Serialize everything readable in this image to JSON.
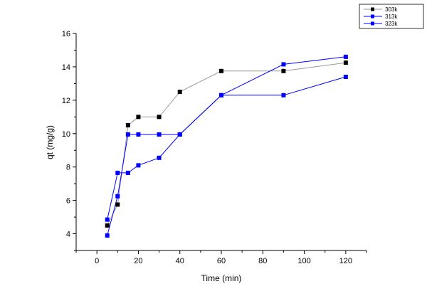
{
  "chart_data": {
    "type": "line",
    "xlabel": "Time (min)",
    "ylabel": "qt (mg/g)",
    "xlim": [
      -10,
      130
    ],
    "ylim": [
      3,
      16
    ],
    "xticks": [
      0,
      20,
      40,
      60,
      80,
      100,
      120
    ],
    "yticks": [
      4,
      6,
      8,
      10,
      12,
      14,
      16
    ],
    "grid": false,
    "legend_position": "top-right",
    "series": [
      {
        "name": "303k",
        "color": "#000000",
        "line_color": "#9a9a9a",
        "marker": "square",
        "x": [
          5,
          10,
          15,
          20,
          30,
          40,
          60,
          90,
          120
        ],
        "y": [
          4.5,
          5.75,
          10.5,
          11.0,
          11.0,
          12.5,
          13.75,
          13.75,
          14.25
        ]
      },
      {
        "name": "313k",
        "color": "#0000ff",
        "line_color": "#0000ff",
        "marker": "square",
        "x": [
          5,
          10,
          15,
          20,
          30,
          40,
          60,
          90,
          120
        ],
        "y": [
          3.9,
          6.25,
          9.95,
          9.95,
          9.95,
          9.95,
          12.3,
          14.15,
          14.6
        ]
      },
      {
        "name": "323k",
        "color": "#0000ff",
        "line_color": "#0000ff",
        "marker": "square",
        "x": [
          5,
          10,
          15,
          20,
          30,
          40,
          60,
          90,
          120
        ],
        "y": [
          4.85,
          7.65,
          7.65,
          8.1,
          8.55,
          9.95,
          12.3,
          12.3,
          13.4
        ]
      }
    ]
  }
}
